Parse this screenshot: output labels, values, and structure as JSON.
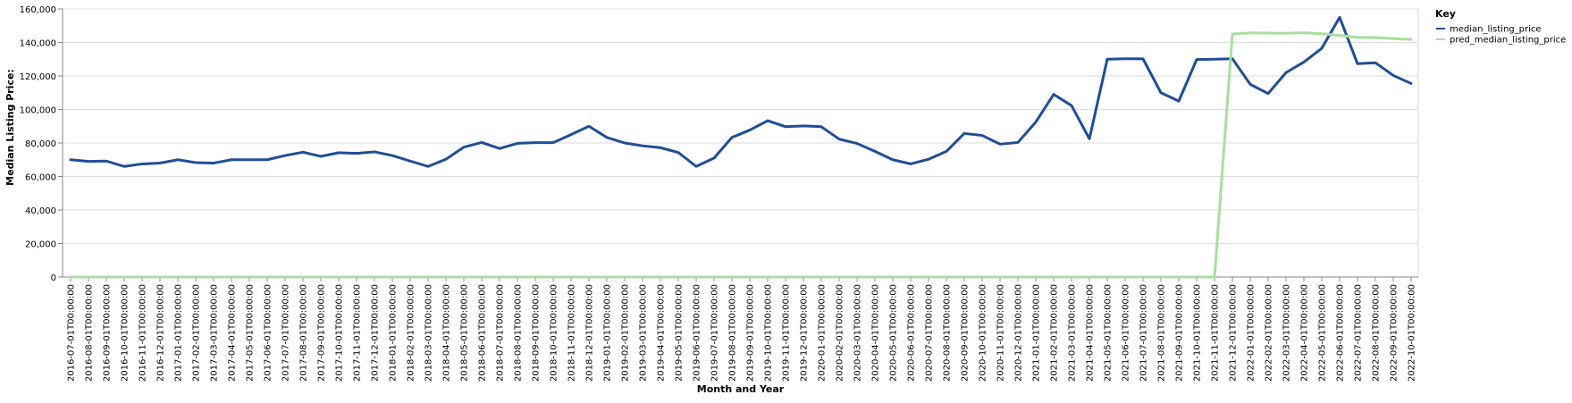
{
  "chart_data": {
    "type": "line",
    "xlabel": "Month and Year",
    "ylabel": "Median Listing Price:",
    "ylim": [
      0,
      160000
    ],
    "yticks": [
      0,
      20000,
      40000,
      60000,
      80000,
      100000,
      120000,
      140000,
      160000
    ],
    "ytick_labels": [
      "0",
      "20,000",
      "40,000",
      "60,000",
      "80,000",
      "100,000",
      "120,000",
      "140,000",
      "160,000"
    ],
    "grid": true,
    "legend": {
      "title": "Key",
      "placement": "top-right-outside"
    },
    "x": [
      "2016-07-01T00:00:00",
      "2016-08-01T00:00:00",
      "2016-09-01T00:00:00",
      "2016-10-01T00:00:00",
      "2016-11-01T00:00:00",
      "2016-12-01T00:00:00",
      "2017-01-01T00:00:00",
      "2017-02-01T00:00:00",
      "2017-03-01T00:00:00",
      "2017-04-01T00:00:00",
      "2017-05-01T00:00:00",
      "2017-06-01T00:00:00",
      "2017-07-01T00:00:00",
      "2017-08-01T00:00:00",
      "2017-09-01T00:00:00",
      "2017-10-01T00:00:00",
      "2017-11-01T00:00:00",
      "2017-12-01T00:00:00",
      "2018-01-01T00:00:00",
      "2018-02-01T00:00:00",
      "2018-03-01T00:00:00",
      "2018-04-01T00:00:00",
      "2018-05-01T00:00:00",
      "2018-06-01T00:00:00",
      "2018-07-01T00:00:00",
      "2018-08-01T00:00:00",
      "2018-09-01T00:00:00",
      "2018-10-01T00:00:00",
      "2018-11-01T00:00:00",
      "2018-12-01T00:00:00",
      "2019-01-01T00:00:00",
      "2019-02-01T00:00:00",
      "2019-03-01T00:00:00",
      "2019-04-01T00:00:00",
      "2019-05-01T00:00:00",
      "2019-06-01T00:00:00",
      "2019-07-01T00:00:00",
      "2019-08-01T00:00:00",
      "2019-09-01T00:00:00",
      "2019-10-01T00:00:00",
      "2019-11-01T00:00:00",
      "2019-12-01T00:00:00",
      "2020-01-01T00:00:00",
      "2020-02-01T00:00:00",
      "2020-03-01T00:00:00",
      "2020-04-01T00:00:00",
      "2020-05-01T00:00:00",
      "2020-06-01T00:00:00",
      "2020-07-01T00:00:00",
      "2020-08-01T00:00:00",
      "2020-09-01T00:00:00",
      "2020-10-01T00:00:00",
      "2020-11-01T00:00:00",
      "2020-12-01T00:00:00",
      "2021-01-01T00:00:00",
      "2021-02-01T00:00:00",
      "2021-03-01T00:00:00",
      "2021-04-01T00:00:00",
      "2021-05-01T00:00:00",
      "2021-06-01T00:00:00",
      "2021-07-01T00:00:00",
      "2021-08-01T00:00:00",
      "2021-09-01T00:00:00",
      "2021-10-01T00:00:00",
      "2021-11-01T00:00:00",
      "2021-12-01T00:00:00",
      "2022-01-01T00:00:00",
      "2022-02-01T00:00:00",
      "2022-03-01T00:00:00",
      "2022-04-01T00:00:00",
      "2022-05-01T00:00:00",
      "2022-06-01T00:00:00",
      "2022-07-01T00:00:00",
      "2022-08-01T00:00:00",
      "2022-09-01T00:00:00",
      "2022-10-01T00:00:00"
    ],
    "series": [
      {
        "name": "median_listing_price",
        "color": "#1f4e96",
        "values": [
          70000,
          69000,
          69200,
          66000,
          67500,
          68000,
          70000,
          68300,
          68000,
          70000,
          70000,
          70000,
          72500,
          74500,
          72000,
          74200,
          73800,
          74700,
          72500,
          69200,
          66000,
          70300,
          77500,
          80300,
          76700,
          79800,
          80200,
          80200,
          85000,
          90000,
          83300,
          80000,
          78300,
          77200,
          74300,
          66000,
          71000,
          83300,
          87700,
          93300,
          89700,
          90200,
          89700,
          82300,
          79700,
          75000,
          70000,
          67500,
          70300,
          75000,
          85700,
          84500,
          79300,
          80300,
          92500,
          109000,
          102300,
          82500,
          130000,
          130300,
          130200,
          110000,
          105000,
          129800,
          130000,
          130300,
          115000,
          109500,
          122000,
          128300,
          136500,
          155000,
          127300,
          127900,
          120300,
          115500
        ]
      },
      {
        "name": "pred_median_listing_price",
        "color": "#a8df9f",
        "values": [
          0,
          0,
          0,
          0,
          0,
          0,
          0,
          0,
          0,
          0,
          0,
          0,
          0,
          0,
          0,
          0,
          0,
          0,
          0,
          0,
          0,
          0,
          0,
          0,
          0,
          0,
          0,
          0,
          0,
          0,
          0,
          0,
          0,
          0,
          0,
          0,
          0,
          0,
          0,
          0,
          0,
          0,
          0,
          0,
          0,
          0,
          0,
          0,
          0,
          0,
          0,
          0,
          0,
          0,
          0,
          0,
          0,
          0,
          0,
          0,
          0,
          0,
          0,
          0,
          0,
          145000,
          145700,
          145600,
          145500,
          145800,
          145200,
          144200,
          143000,
          142900,
          142300,
          141800
        ]
      }
    ]
  }
}
